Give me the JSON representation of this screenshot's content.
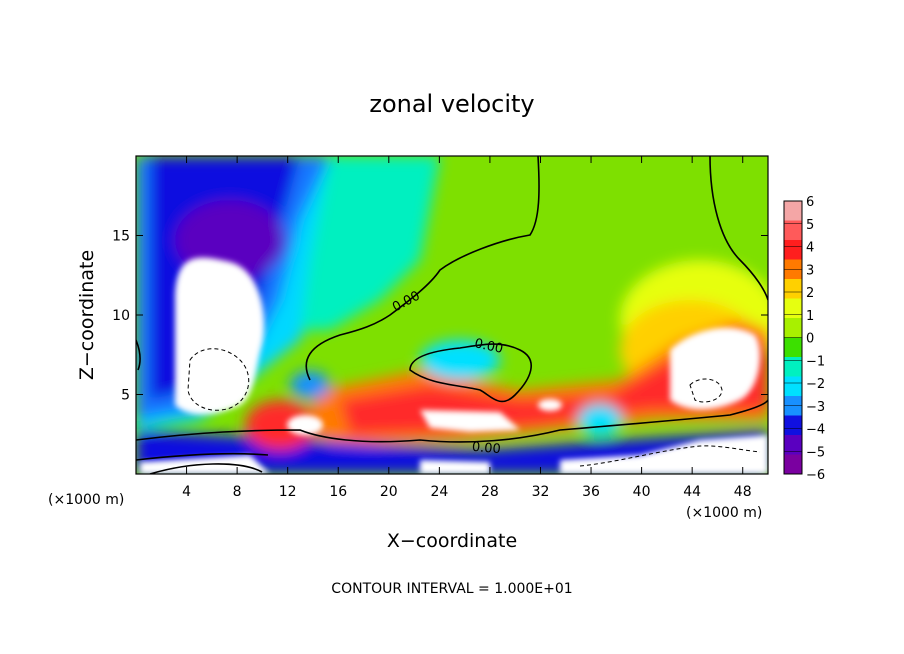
{
  "chart_data": {
    "type": "heatmap",
    "title": "zonal velocity",
    "xlabel": "X−coordinate",
    "ylabel": "Z−coordinate",
    "x_unit_left": "(×1000 m)",
    "x_unit_right": "(×1000 m)",
    "xlim": [
      0,
      50
    ],
    "ylim": [
      0,
      20
    ],
    "x_ticks": [
      4,
      8,
      12,
      16,
      20,
      24,
      28,
      32,
      36,
      40,
      44,
      48
    ],
    "y_ticks": [
      5,
      10,
      15
    ],
    "colorbar": {
      "levels": [
        6,
        5,
        4,
        3,
        2,
        1,
        0,
        -1,
        -2,
        -3,
        -4,
        -5,
        -6
      ],
      "labels": [
        "6",
        "5",
        "4",
        "3",
        "2",
        "1",
        "0",
        "−1",
        "−2",
        "−3",
        "−4",
        "−5",
        "−6"
      ],
      "colors": [
        "#f4a6a6",
        "#ff5a5a",
        "#ff1e1e",
        "#ff7a00",
        "#ffd000",
        "#e6ff10",
        "#a8f000",
        "#3ce000",
        "#00f0c0",
        "#00e0ff",
        "#1890ff",
        "#1010e0",
        "#5a00c0",
        "#7a00a0"
      ]
    },
    "contour_labels": [
      "0.00",
      "0.00",
      "0.00"
    ],
    "footer": "CONTOUR INTERVAL = 1.000E+01"
  }
}
